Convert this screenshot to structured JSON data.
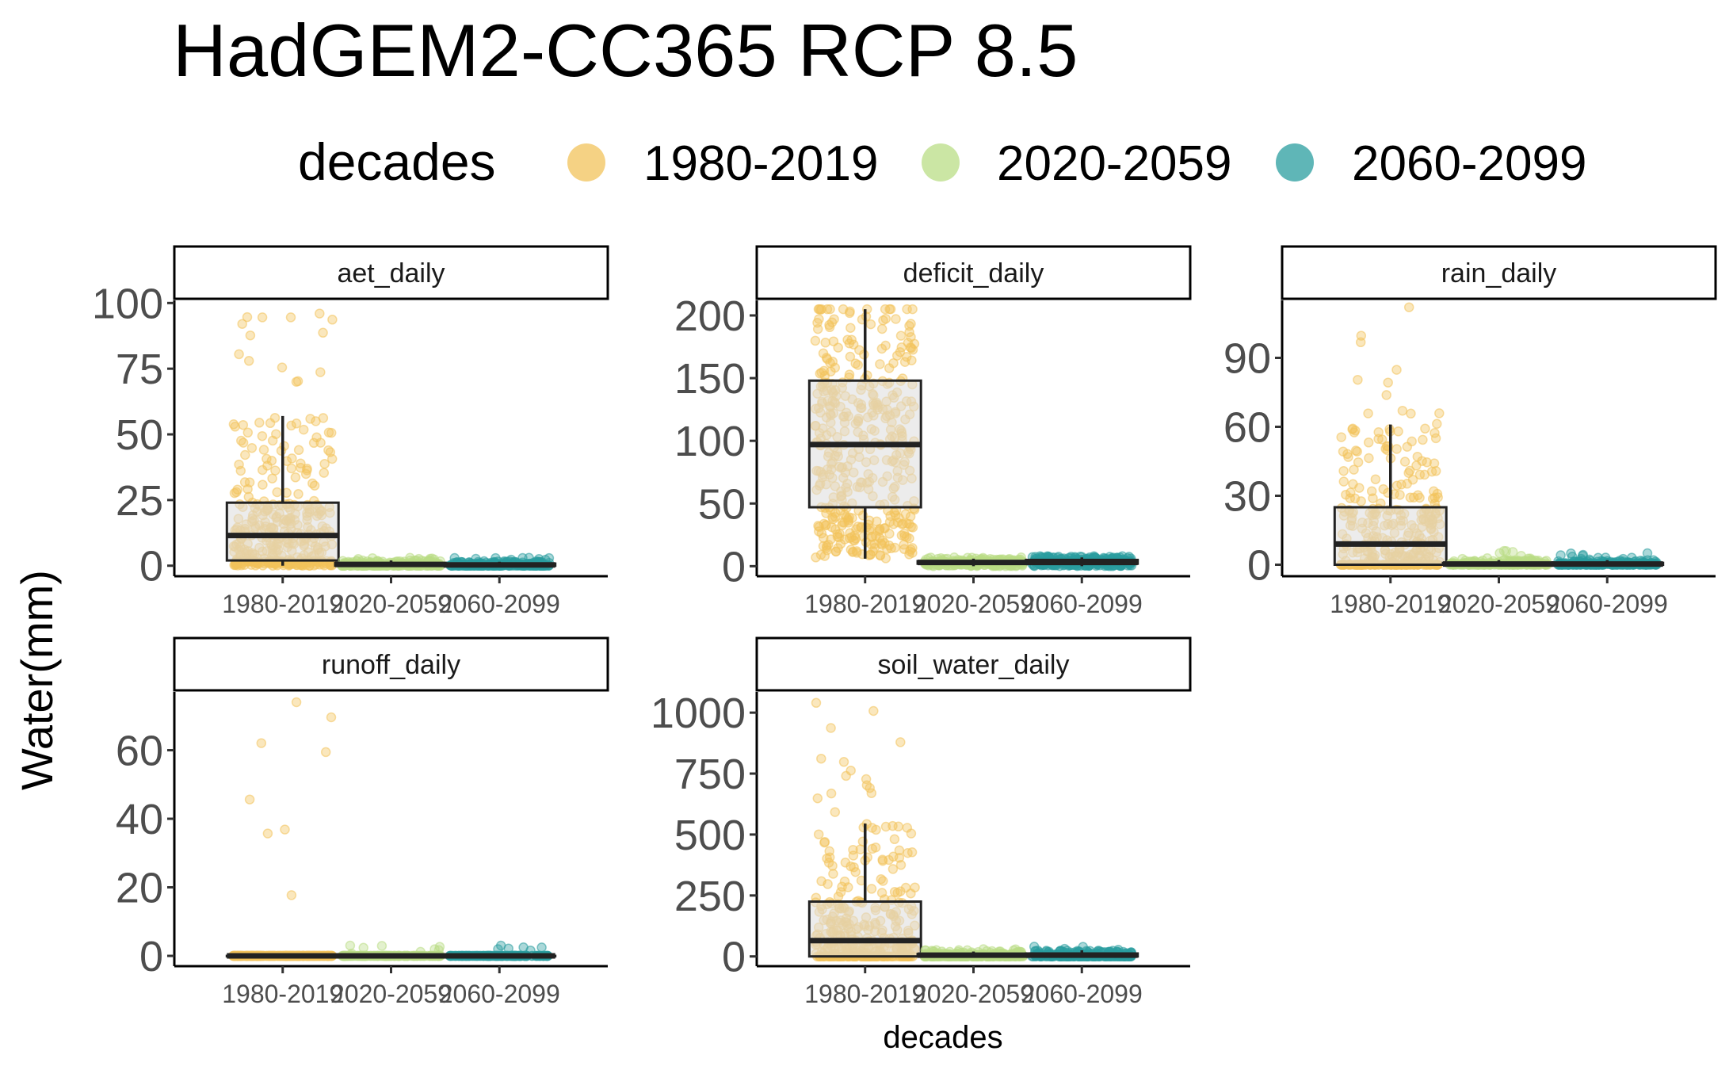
{
  "chart_data": {
    "type": "boxplot",
    "title": "HadGEM2-CC365 RCP 8.5",
    "xlabel": "decades",
    "ylabel": "Water(mm)",
    "legend": {
      "title": "decades",
      "position": "top",
      "entries": [
        {
          "label": "1980-2019",
          "color": "#F2C35B"
        },
        {
          "label": "2020-2059",
          "color": "#B9DD85"
        },
        {
          "label": "2060-2099",
          "color": "#2A9D9F"
        }
      ]
    },
    "categories": [
      "1980-2019",
      "2020-2059",
      "2060-2099"
    ],
    "grid": false,
    "panels": [
      {
        "name": "aet_daily",
        "ylim": [
          -4,
          101
        ],
        "yticks": [
          0,
          25,
          50,
          75,
          100
        ],
        "boxes": [
          {
            "whisker_low": 0,
            "q1": 2,
            "median": 11.5,
            "q3": 24,
            "whisker_high": 57,
            "point_max": 96,
            "n_points": 380
          },
          {
            "whisker_low": 0,
            "q1": 0,
            "median": 0.5,
            "q3": 1,
            "whisker_high": 2,
            "point_max": 3,
            "n_points": 260
          },
          {
            "whisker_low": 0,
            "q1": 0,
            "median": 0.3,
            "q3": 0.8,
            "whisker_high": 1.5,
            "point_max": 3,
            "n_points": 260
          }
        ]
      },
      {
        "name": "deficit_daily",
        "ylim": [
          -8,
          212
        ],
        "yticks": [
          0,
          50,
          100,
          150,
          200
        ],
        "boxes": [
          {
            "whisker_low": 6,
            "q1": 47,
            "median": 97,
            "q3": 148,
            "whisker_high": 205,
            "point_max": 205,
            "n_points": 420
          },
          {
            "whisker_low": 0,
            "q1": 2,
            "median": 3,
            "q3": 4,
            "whisker_high": 6,
            "point_max": 7,
            "n_points": 260
          },
          {
            "whisker_low": 0,
            "q1": 2,
            "median": 3,
            "q3": 5,
            "whisker_high": 7,
            "point_max": 8,
            "n_points": 320
          }
        ]
      },
      {
        "name": "rain_daily",
        "ylim": [
          -5,
          115
        ],
        "yticks": [
          0,
          30,
          60,
          90
        ],
        "boxes": [
          {
            "whisker_low": 0,
            "q1": 0,
            "median": 9,
            "q3": 25,
            "whisker_high": 61,
            "point_max": 112,
            "n_points": 360
          },
          {
            "whisker_low": 0,
            "q1": 0,
            "median": 0.3,
            "q3": 0.8,
            "whisker_high": 2,
            "point_max": 6,
            "n_points": 220
          },
          {
            "whisker_low": 0,
            "q1": 0,
            "median": 0.3,
            "q3": 0.8,
            "whisker_high": 2,
            "point_max": 5,
            "n_points": 260
          }
        ]
      },
      {
        "name": "runoff_daily",
        "ylim": [
          -3,
          77
        ],
        "yticks": [
          0,
          20,
          40,
          60
        ],
        "boxes": [
          {
            "whisker_low": 0,
            "q1": 0,
            "median": 0,
            "q3": 0,
            "whisker_high": 0,
            "point_max": 74,
            "n_points": 320
          },
          {
            "whisker_low": 0,
            "q1": 0,
            "median": 0,
            "q3": 0,
            "whisker_high": 0,
            "point_max": 3,
            "n_points": 160
          },
          {
            "whisker_low": 0,
            "q1": 0,
            "median": 0,
            "q3": 0,
            "whisker_high": 0,
            "point_max": 3,
            "n_points": 170
          }
        ]
      },
      {
        "name": "soil_water_daily",
        "ylim": [
          -40,
          1085
        ],
        "yticks": [
          0,
          250,
          500,
          750,
          1000
        ],
        "boxes": [
          {
            "whisker_low": 0,
            "q1": 0,
            "median": 65,
            "q3": 225,
            "whisker_high": 545,
            "point_max": 1040,
            "n_points": 380
          },
          {
            "whisker_low": 0,
            "q1": 0,
            "median": 5,
            "q3": 10,
            "whisker_high": 20,
            "point_max": 30,
            "n_points": 260
          },
          {
            "whisker_low": 0,
            "q1": 0,
            "median": 5,
            "q3": 12,
            "whisker_high": 25,
            "point_max": 40,
            "n_points": 300
          }
        ]
      }
    ]
  }
}
